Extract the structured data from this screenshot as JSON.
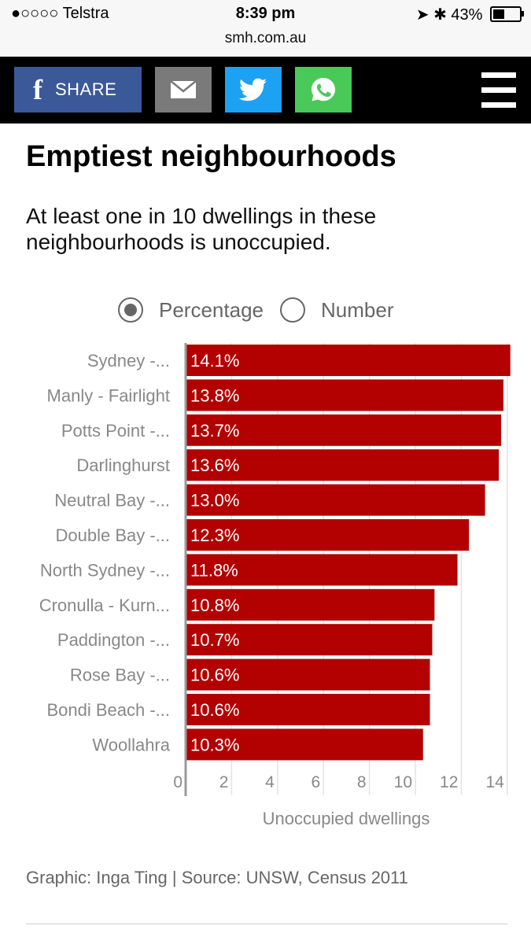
{
  "status_bar": {
    "carrier": "●○○○○ Telstra",
    "time": "8:39 pm",
    "battery": "43%",
    "url": "smh.com.au"
  },
  "toolbar": {
    "share_label": "SHARE",
    "colors": {
      "facebook": "#3b5998",
      "email": "#7a7a7a",
      "twitter": "#1da1f2",
      "whatsapp": "#4ac959"
    }
  },
  "article": {
    "title": "Emptiest neighbourhoods",
    "subtitle": "At least one in 10 dwellings in these neighbourhoods is unoccupied."
  },
  "toggle": {
    "options": [
      "Percentage",
      "Number"
    ],
    "selected": "Percentage"
  },
  "chart_data": {
    "type": "bar",
    "orientation": "horizontal",
    "categories": [
      "Sydney -...",
      "Manly - Fairlight",
      "Potts Point -...",
      "Darlinghurst",
      "Neutral Bay -...",
      "Double Bay -...",
      "North Sydney -...",
      "Cronulla - Kurn...",
      "Paddington -...",
      "Rose Bay -...",
      "Bondi Beach -...",
      "Woollahra"
    ],
    "values": [
      14.1,
      13.8,
      13.7,
      13.6,
      13.0,
      12.3,
      11.8,
      10.8,
      10.7,
      10.6,
      10.6,
      10.3
    ],
    "labels": [
      "14.1%",
      "13.8%",
      "13.7%",
      "13.6%",
      "13.0%",
      "12.3%",
      "11.8%",
      "10.8%",
      "10.7%",
      "10.6%",
      "10.6%",
      "10.3%"
    ],
    "xticks": [
      0,
      2,
      4,
      6,
      8,
      10,
      12,
      14
    ],
    "xlim": [
      0,
      14
    ],
    "xlabel": "Unoccupied dwellings",
    "bar_color": "#b30000",
    "grid": true
  },
  "footer": {
    "credit": "Graphic: Inga Ting | Source: UNSW, Census 2011"
  }
}
